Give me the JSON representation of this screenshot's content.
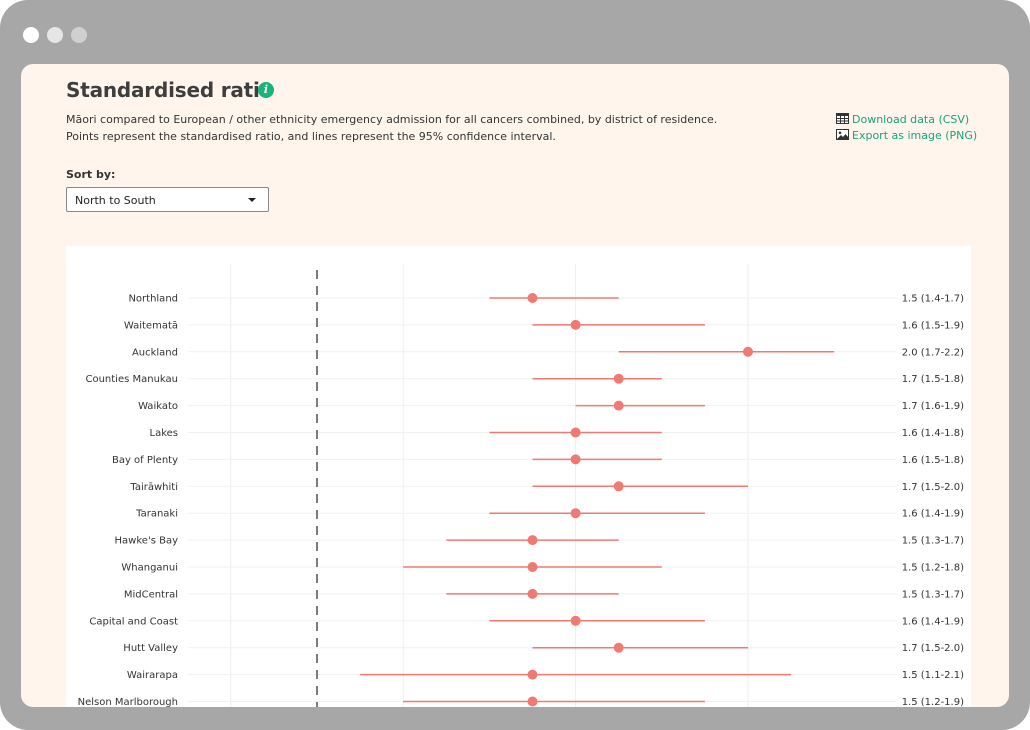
{
  "header": {
    "title": "Standardised ratio",
    "description_line1": "Māori compared to European / other ethnicity emergency admission for all cancers combined, by district of residence.",
    "description_line2": "Points represent the standardised ratio, and lines represent the 95% confidence interval."
  },
  "actions": {
    "download_label": "Download data (CSV)",
    "export_label": "Export as image (PNG)"
  },
  "sort": {
    "label": "Sort by:",
    "selected": "North to South"
  },
  "colors": {
    "point": "#f07a72",
    "accent": "#16a37b"
  },
  "chart_data": {
    "type": "scatter",
    "orientation": "horizontal",
    "reference_line": 1.0,
    "xlim": [
      0.7,
      2.9
    ],
    "grid": true,
    "rows": [
      {
        "district": "Northland",
        "ratio": 1.5,
        "lower": 1.4,
        "upper": 1.7,
        "label": "1.5 (1.4-1.7)"
      },
      {
        "district": "Waitematā",
        "ratio": 1.6,
        "lower": 1.5,
        "upper": 1.9,
        "label": "1.6 (1.5-1.9)"
      },
      {
        "district": "Auckland",
        "ratio": 2.0,
        "lower": 1.7,
        "upper": 2.2,
        "label": "2.0 (1.7-2.2)"
      },
      {
        "district": "Counties Manukau",
        "ratio": 1.7,
        "lower": 1.5,
        "upper": 1.8,
        "label": "1.7 (1.5-1.8)"
      },
      {
        "district": "Waikato",
        "ratio": 1.7,
        "lower": 1.6,
        "upper": 1.9,
        "label": "1.7 (1.6-1.9)"
      },
      {
        "district": "Lakes",
        "ratio": 1.6,
        "lower": 1.4,
        "upper": 1.8,
        "label": "1.6 (1.4-1.8)"
      },
      {
        "district": "Bay of Plenty",
        "ratio": 1.6,
        "lower": 1.5,
        "upper": 1.8,
        "label": "1.6 (1.5-1.8)"
      },
      {
        "district": "Tairāwhiti",
        "ratio": 1.7,
        "lower": 1.5,
        "upper": 2.0,
        "label": "1.7 (1.5-2.0)"
      },
      {
        "district": "Taranaki",
        "ratio": 1.6,
        "lower": 1.4,
        "upper": 1.9,
        "label": "1.6 (1.4-1.9)"
      },
      {
        "district": "Hawke's Bay",
        "ratio": 1.5,
        "lower": 1.3,
        "upper": 1.7,
        "label": "1.5 (1.3-1.7)"
      },
      {
        "district": "Whanganui",
        "ratio": 1.5,
        "lower": 1.2,
        "upper": 1.8,
        "label": "1.5 (1.2-1.8)"
      },
      {
        "district": "MidCentral",
        "ratio": 1.5,
        "lower": 1.3,
        "upper": 1.7,
        "label": "1.5 (1.3-1.7)"
      },
      {
        "district": "Capital and Coast",
        "ratio": 1.6,
        "lower": 1.4,
        "upper": 1.9,
        "label": "1.6 (1.4-1.9)"
      },
      {
        "district": "Hutt Valley",
        "ratio": 1.7,
        "lower": 1.5,
        "upper": 2.0,
        "label": "1.7 (1.5-2.0)"
      },
      {
        "district": "Wairarapa",
        "ratio": 1.5,
        "lower": 1.1,
        "upper": 2.1,
        "label": "1.5 (1.1-2.1)"
      },
      {
        "district": "Nelson Marlborough",
        "ratio": 1.5,
        "lower": 1.2,
        "upper": 1.9,
        "label": "1.5 (1.2-1.9)"
      }
    ]
  }
}
